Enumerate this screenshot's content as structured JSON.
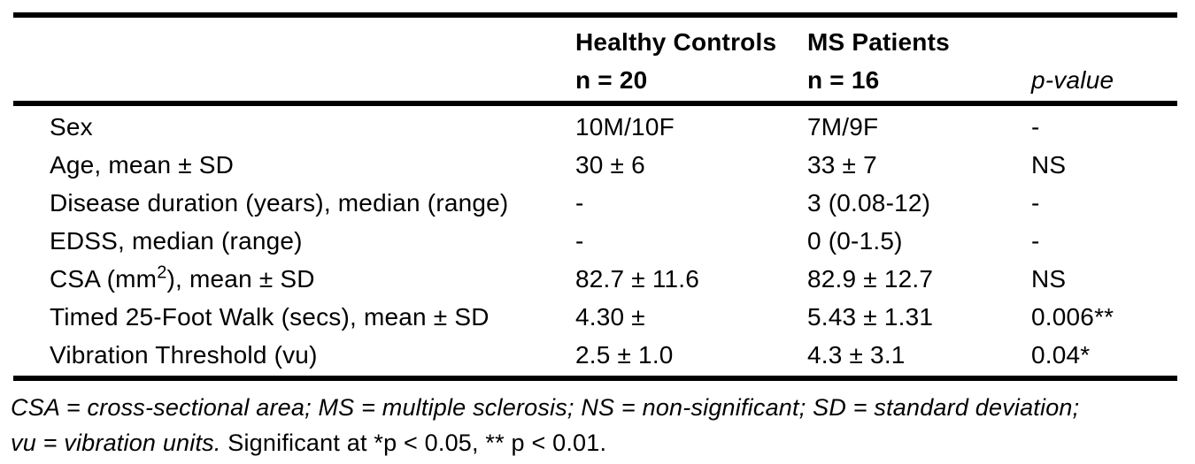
{
  "page": {
    "background": "#ffffff",
    "text_color": "#000000",
    "rule_color": "#000000"
  },
  "table": {
    "columns": [
      {
        "header_line1": "",
        "header_line2": ""
      },
      {
        "header_line1": "Healthy Controls",
        "header_line2": "n = 20"
      },
      {
        "header_line1": "MS Patients",
        "header_line2": "n = 16"
      },
      {
        "header_line1": "",
        "header_line2": "p-value"
      }
    ],
    "rows": [
      {
        "label": "Sex",
        "healthy": "10M/10F",
        "ms": "7M/9F",
        "p": "-"
      },
      {
        "label": "Age, mean ± SD",
        "healthy": "30 ± 6",
        "ms": "33 ± 7",
        "p": "NS"
      },
      {
        "label": "Disease duration (years), median (range)",
        "healthy": "-",
        "ms": "3 (0.08-12)",
        "p": "-"
      },
      {
        "label": "EDSS, median (range)",
        "healthy": "-",
        "ms": "0 (0-1.5)",
        "p": "-"
      },
      {
        "label": "CSA (mm",
        "label_sup": "2",
        "label_post": "), mean ± SD",
        "healthy": "82.7 ± 11.6",
        "ms": "82.9 ± 12.7",
        "p": "NS"
      },
      {
        "label": "Timed 25-Foot Walk (secs), mean ± SD",
        "healthy": "4.30 ±",
        "ms": "5.43 ± 1.31",
        "p": "0.006**"
      },
      {
        "label": "Vibration Threshold (vu)",
        "healthy": "2.5 ± 1.0",
        "ms": "4.3 ± 3.1",
        "p": "0.04*"
      }
    ],
    "footnote": {
      "line1_italic": "CSA = cross-sectional area; MS = multiple sclerosis; NS = non-significant; SD = standard deviation;",
      "line2_italic": "vu = vibration units.",
      "line2_regular": " Significant at *p < 0.05, ** p < 0.01."
    }
  }
}
